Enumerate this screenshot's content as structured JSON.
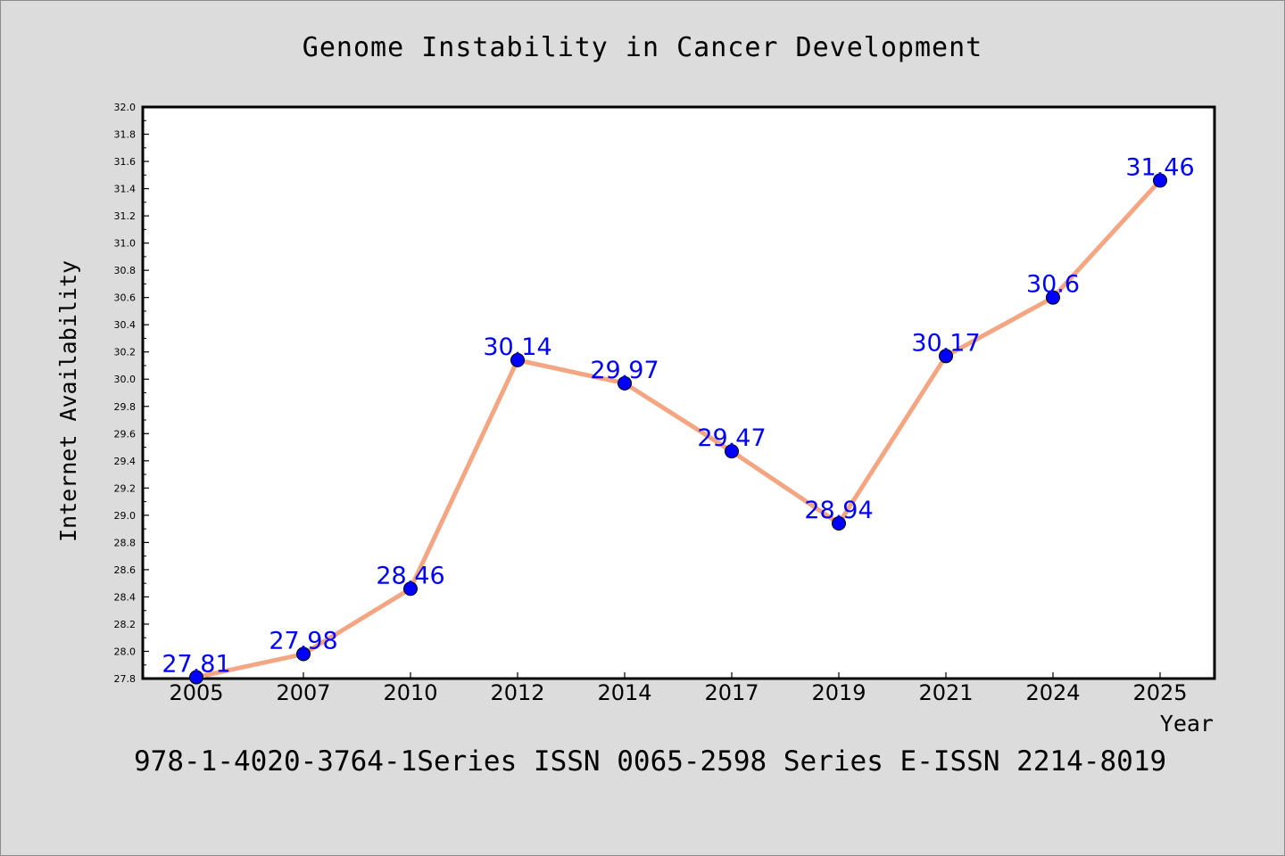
{
  "chart_data": {
    "type": "line",
    "title": "Genome Instability in Cancer Development",
    "xlabel": "Year",
    "ylabel": "Internet Availability",
    "categories": [
      "2005",
      "2007",
      "2010",
      "2012",
      "2014",
      "2017",
      "2019",
      "2021",
      "2024",
      "2025"
    ],
    "series": [
      {
        "values": [
          27.81,
          27.98,
          28.46,
          30.14,
          29.97,
          29.47,
          28.94,
          30.17,
          30.6,
          31.46
        ],
        "data_labels": [
          "27.81",
          "27.98",
          "28.46",
          "30.14",
          "29.97",
          "29.47",
          "28.94",
          "30.17",
          "30.6",
          "31.46"
        ]
      }
    ],
    "ylim": [
      27.8,
      32.0
    ],
    "yticks": [
      "27.8",
      "28.0",
      "28.2",
      "28.4",
      "28.6",
      "28.8",
      "29.0",
      "29.2",
      "29.4",
      "29.6",
      "29.8",
      "30.0",
      "30.2",
      "30.4",
      "30.6",
      "30.8",
      "31.0",
      "31.2",
      "31.4",
      "31.6",
      "31.8",
      "32.0"
    ],
    "grid": false,
    "legend": "none",
    "line_color": "#f4a582",
    "marker_color": "#0000ff",
    "label_color": "#0000ff",
    "background_color": "#dcdcdc",
    "plot_background_color": "#ffffff"
  },
  "footer": {
    "text": "978-1-4020-3764-1Series ISSN 0065-2598 Series E-ISSN 2214-8019"
  }
}
